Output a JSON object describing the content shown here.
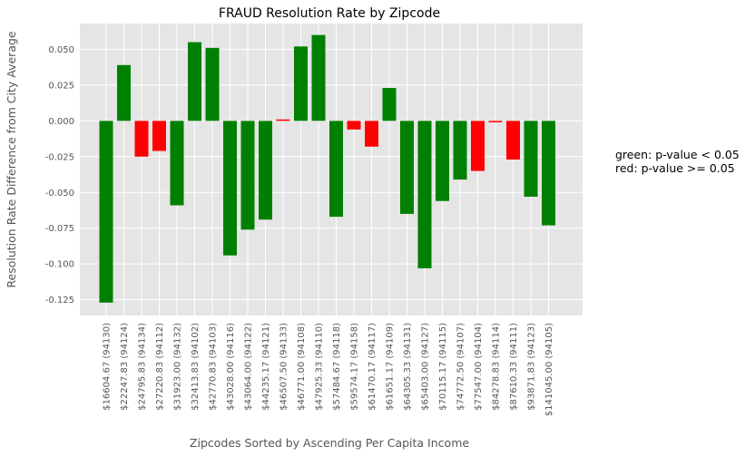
{
  "chart_data": {
    "type": "bar",
    "title": "FRAUD Resolution Rate by Zipcode",
    "xlabel": "Zipcodes Sorted by Ascending Per Capita Income",
    "ylabel": "Resolution Rate Difference from City Average",
    "ylim": [
      -0.136,
      0.068
    ],
    "yticks": [
      "-0.125",
      "-0.100",
      "-0.075",
      "-0.050",
      "-0.025",
      "0.000",
      "0.025",
      "0.050"
    ],
    "ytick_values": [
      -0.125,
      -0.1,
      -0.075,
      -0.05,
      -0.025,
      0.0,
      0.025,
      0.05
    ],
    "grid": true,
    "categories": [
      "$16604.67 (94130)",
      "$22247.83 (94124)",
      "$24795.83 (94134)",
      "$27220.83 (94112)",
      "$31923.00 (94132)",
      "$32413.83 (94102)",
      "$42770.83 (94103)",
      "$43028.00 (94116)",
      "$43064.00 (94122)",
      "$44235.17 (94121)",
      "$46507.50 (94133)",
      "$46771.00 (94108)",
      "$47925.33 (94110)",
      "$57484.67 (94118)",
      "$59574.17 (94158)",
      "$61470.17 (94117)",
      "$61651.17 (94109)",
      "$64305.33 (94131)",
      "$65403.00 (94127)",
      "$70115.17 (94115)",
      "$74772.50 (94107)",
      "$77547.00 (94104)",
      "$84278.83 (94114)",
      "$87610.33 (94111)",
      "$93871.83 (94123)",
      "$141045.00 (94105)"
    ],
    "values": [
      -0.127,
      0.039,
      -0.025,
      -0.021,
      -0.059,
      0.055,
      0.051,
      -0.094,
      -0.076,
      -0.069,
      0.001,
      0.052,
      0.06,
      -0.067,
      -0.006,
      -0.018,
      0.023,
      -0.065,
      -0.103,
      -0.056,
      -0.041,
      -0.035,
      -0.001,
      -0.027,
      -0.053,
      -0.073
    ],
    "significant": [
      true,
      true,
      false,
      false,
      true,
      true,
      true,
      true,
      true,
      true,
      false,
      true,
      true,
      true,
      false,
      false,
      true,
      true,
      true,
      true,
      true,
      false,
      false,
      false,
      true,
      true
    ],
    "colors": {
      "significant": "#008000",
      "not_significant": "#ff0000",
      "background": "#e5e5e5",
      "grid": "#ffffff"
    }
  },
  "legend_note": {
    "line1": "green: p-value < 0.05",
    "line2": "red: p-value >= 0.05"
  }
}
